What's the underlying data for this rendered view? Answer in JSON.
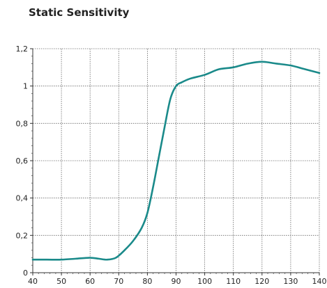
{
  "chart_data": {
    "type": "line",
    "title": "Static Sensitivity",
    "xlabel": "",
    "ylabel": "",
    "xlim": [
      40,
      140
    ],
    "ylim": [
      0,
      1.2
    ],
    "x_ticks": [
      40,
      50,
      60,
      70,
      80,
      90,
      100,
      110,
      120,
      130,
      140
    ],
    "x_tick_labels": [
      "40",
      "50",
      "60",
      "70",
      "80",
      "90",
      "100",
      "110",
      "120",
      "130",
      "140"
    ],
    "y_ticks": [
      0,
      0.2,
      0.4,
      0.6,
      0.8,
      1.0,
      1.2
    ],
    "y_tick_labels": [
      "0",
      "0,2",
      "0,4",
      "0,6",
      "0,8",
      "1",
      "1,2"
    ],
    "grid": true,
    "grid_style": "dotted",
    "series": [
      {
        "color": "#1a8a8a",
        "x": [
          40,
          45,
          50,
          55,
          60,
          63,
          66,
          69,
          72,
          75,
          78,
          80,
          82,
          84,
          86,
          88,
          90,
          92,
          95,
          100,
          105,
          110,
          115,
          120,
          125,
          130,
          135,
          140
        ],
        "y": [
          0.07,
          0.07,
          0.07,
          0.075,
          0.08,
          0.075,
          0.07,
          0.08,
          0.12,
          0.17,
          0.24,
          0.32,
          0.46,
          0.62,
          0.78,
          0.93,
          1.0,
          1.02,
          1.04,
          1.06,
          1.09,
          1.1,
          1.12,
          1.13,
          1.12,
          1.11,
          1.09,
          1.07
        ]
      }
    ]
  }
}
